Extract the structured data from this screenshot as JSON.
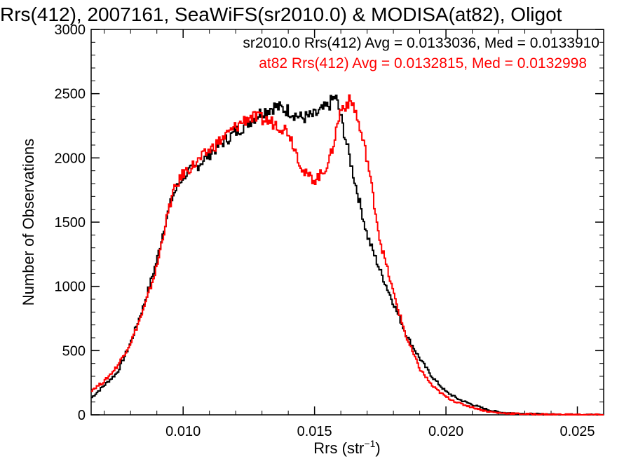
{
  "chart_data": {
    "type": "line",
    "title": "Rrs(412), 2007161, SeaWiFS(sr2010.0) & MODISA(at82), Oligot",
    "xlabel_base": "Rrs (str",
    "xlabel_sup": "−1",
    "xlabel_close": ")",
    "ylabel": "Number of Observations",
    "xlim": [
      0.0065,
      0.026
    ],
    "ylim": [
      0,
      3000
    ],
    "x_ticks": [
      0.01,
      0.015,
      0.02,
      0.025
    ],
    "x_tick_labels": [
      "0.010",
      "0.015",
      "0.020",
      "0.025"
    ],
    "y_ticks": [
      0,
      500,
      1000,
      1500,
      2000,
      2500,
      3000
    ],
    "y_tick_labels": [
      "0",
      "500",
      "1000",
      "1500",
      "2000",
      "2500",
      "3000"
    ],
    "legend_position": "top-right",
    "grid": false,
    "series": [
      {
        "name": "sr2010.0",
        "label": "sr2010.0 Rrs(412) Avg = 0.0133036, Med = 0.0133910",
        "color": "#000000",
        "x": [
          0.0065,
          0.007,
          0.0075,
          0.008,
          0.0085,
          0.009,
          0.0093,
          0.0096,
          0.01,
          0.0105,
          0.011,
          0.0115,
          0.012,
          0.0125,
          0.013,
          0.0135,
          0.014,
          0.0145,
          0.015,
          0.0155,
          0.0158,
          0.016,
          0.0165,
          0.017,
          0.0175,
          0.018,
          0.0185,
          0.019,
          0.0195,
          0.02,
          0.0205,
          0.021,
          0.0215,
          0.022,
          0.023,
          0.024,
          0.025,
          0.026
        ],
        "y": [
          130,
          230,
          330,
          560,
          850,
          1200,
          1480,
          1700,
          1860,
          1930,
          2030,
          2120,
          2200,
          2280,
          2360,
          2400,
          2370,
          2310,
          2330,
          2400,
          2480,
          2320,
          1850,
          1400,
          1120,
          870,
          620,
          440,
          290,
          180,
          120,
          80,
          45,
          20,
          8,
          3,
          1,
          0
        ]
      },
      {
        "name": "at82",
        "label": "at82 Rrs(412) Avg = 0.0132815, Med = 0.0132998",
        "color": "#ff0000",
        "x": [
          0.0065,
          0.007,
          0.0075,
          0.008,
          0.0085,
          0.009,
          0.0093,
          0.0096,
          0.01,
          0.0105,
          0.011,
          0.0115,
          0.012,
          0.0125,
          0.013,
          0.0135,
          0.014,
          0.0143,
          0.0146,
          0.015,
          0.0153,
          0.0156,
          0.016,
          0.0163,
          0.0165,
          0.017,
          0.0175,
          0.018,
          0.0185,
          0.019,
          0.0195,
          0.02,
          0.0205,
          0.021,
          0.0215,
          0.022,
          0.023,
          0.024,
          0.025,
          0.026
        ],
        "y": [
          190,
          260,
          380,
          560,
          820,
          1150,
          1460,
          1720,
          1880,
          1960,
          2060,
          2150,
          2240,
          2320,
          2300,
          2270,
          2210,
          2050,
          1880,
          1830,
          1880,
          2000,
          2380,
          2440,
          2410,
          2000,
          1350,
          950,
          600,
          360,
          220,
          140,
          90,
          60,
          30,
          15,
          6,
          3,
          1,
          0
        ]
      }
    ]
  }
}
